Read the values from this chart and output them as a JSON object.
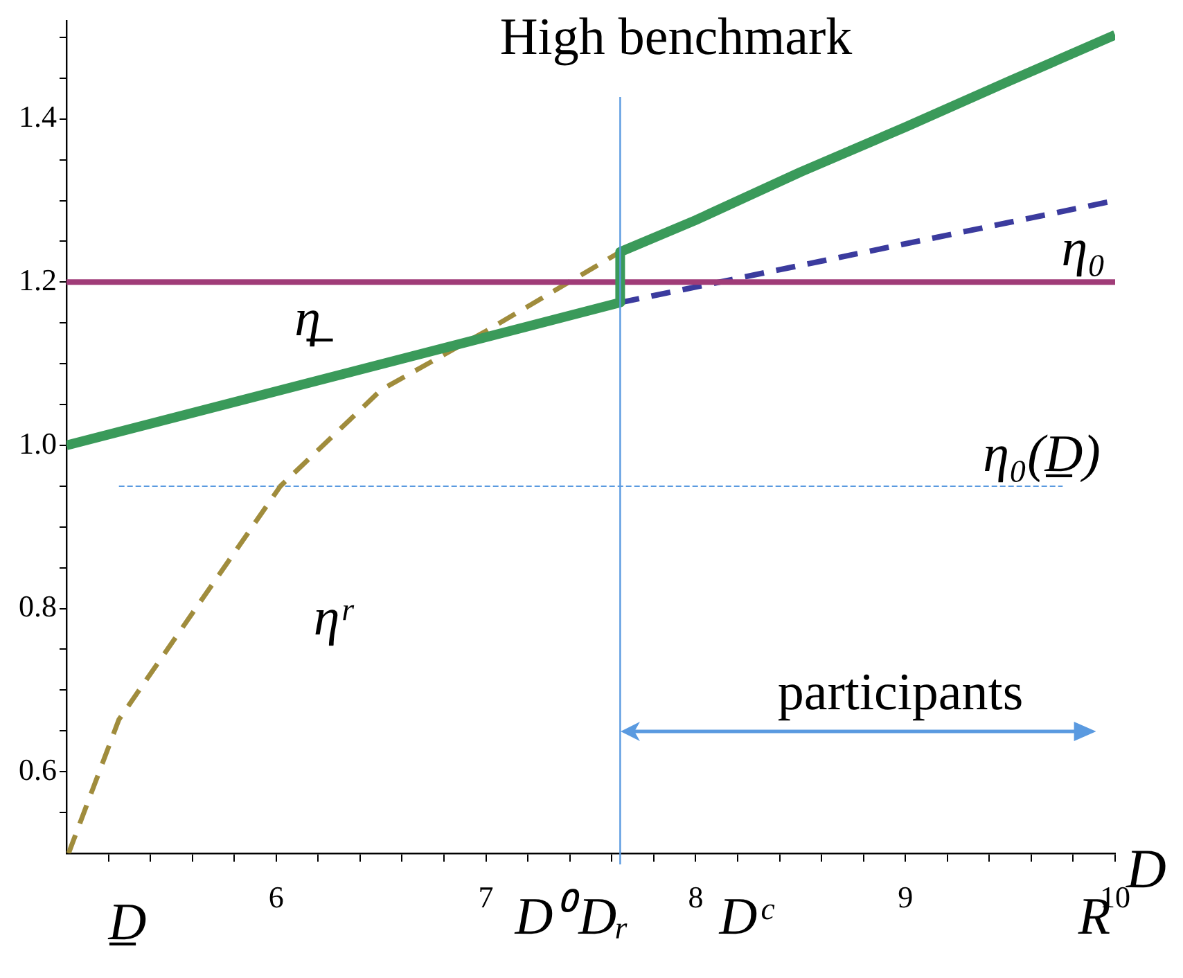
{
  "chart_data": {
    "type": "line",
    "title": "High benchmark",
    "xlabel": "D",
    "legend": false,
    "grid": false,
    "marker": "none",
    "xlim": [
      5,
      10
    ],
    "ylim": [
      0.5,
      1.52
    ],
    "xticks": [
      {
        "value": 5.2,
        "label": null
      },
      {
        "value": 5.4,
        "label": null
      },
      {
        "value": 5.6,
        "label": null
      },
      {
        "value": 5.8,
        "label": null
      },
      6,
      {
        "value": 6.2,
        "label": null
      },
      {
        "value": 6.4,
        "label": null
      },
      {
        "value": 6.6,
        "label": null
      },
      {
        "value": 6.8,
        "label": null
      },
      7,
      {
        "value": 7.2,
        "label": null
      },
      {
        "value": 7.4,
        "label": null
      },
      {
        "value": 7.6,
        "label": null
      },
      {
        "value": 7.8,
        "label": null
      },
      8,
      {
        "value": 8.2,
        "label": null
      },
      {
        "value": 8.4,
        "label": null
      },
      {
        "value": 8.6,
        "label": null
      },
      {
        "value": 8.8,
        "label": null
      },
      9,
      {
        "value": 9.2,
        "label": null
      },
      {
        "value": 9.4,
        "label": null
      },
      {
        "value": 9.6,
        "label": null
      },
      {
        "value": 9.8,
        "label": null
      },
      10
    ],
    "yticks": [
      {
        "value": 0.55,
        "label": null
      },
      0.6,
      {
        "value": 0.65,
        "label": null
      },
      {
        "value": 0.7,
        "label": null
      },
      {
        "value": 0.75,
        "label": null
      },
      0.8,
      {
        "value": 0.85,
        "label": null
      },
      {
        "value": 0.9,
        "label": null
      },
      {
        "value": 0.95,
        "label": null
      },
      {
        "value": 1.0,
        "label": "1.0"
      },
      {
        "value": 1.05,
        "label": null
      },
      {
        "value": 1.1,
        "label": null
      },
      {
        "value": 1.15,
        "label": null
      },
      1.2,
      {
        "value": 1.25,
        "label": null
      },
      {
        "value": 1.3,
        "label": null
      },
      {
        "value": 1.35,
        "label": null
      },
      1.4,
      {
        "value": 1.45,
        "label": null
      },
      {
        "value": 1.5,
        "label": null
      }
    ],
    "series": [
      {
        "color": "#3a9a5a",
        "line_style": "solid",
        "x": [
          5,
          7.64,
          7.64,
          8,
          8.5,
          9,
          9.5,
          10
        ],
        "values": [
          1.0,
          1.175,
          1.237,
          1.276,
          1.335,
          1.39,
          1.447,
          1.503
        ]
      },
      {
        "color": "#a03c78",
        "line_style": "solid",
        "x": [
          5,
          10
        ],
        "values": [
          1.2,
          1.2
        ]
      },
      {
        "color": "#3b3b9e",
        "line_style": "dashed",
        "x": [
          7.64,
          10
        ],
        "values": [
          1.175,
          1.3
        ]
      },
      {
        "color": "#a08c3c",
        "line_style": "dashed",
        "x": [
          5.01,
          5.25,
          5.5,
          6.02,
          6.5,
          7,
          7.64
        ],
        "values": [
          0.5,
          0.664,
          0.757,
          0.95,
          1.068,
          1.14,
          1.237
        ]
      },
      {
        "color": "#5a9ae0",
        "line_style": "dashed",
        "x": [
          5.25,
          9.75
        ],
        "values": [
          0.95,
          0.95
        ]
      }
    ],
    "ref_lines": [
      {
        "axis": "x",
        "value": 7.64,
        "color": "#5a9ae0"
      }
    ],
    "annotations": [
      "η̲",
      {
        "text": "η₀",
        "x": 9.85,
        "y": 1.2
      },
      "η₀(D̲)",
      "ηʳ",
      "participants",
      "D̲",
      "D⁰",
      "Dᵣ",
      "Dᶜ",
      "R"
    ]
  }
}
